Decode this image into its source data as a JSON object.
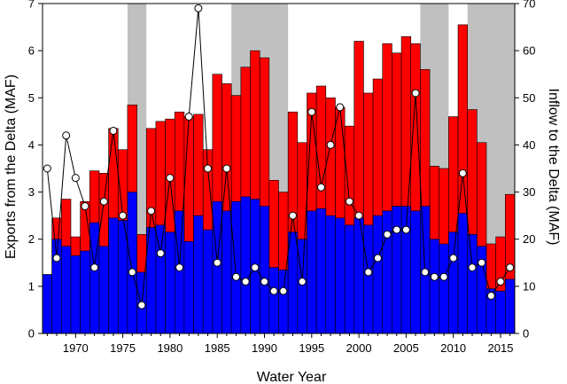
{
  "chart_data": {
    "type": "bar",
    "xlabel": "Water Year",
    "ylabel_left": "Exports from the Delta (MAF)",
    "ylabel_right": "Inflow to the Delta (MAF)",
    "xlim": [
      1966.5,
      2016.5
    ],
    "ylim_left": [
      0,
      7
    ],
    "ylim_right": [
      0,
      70
    ],
    "x_ticks": [
      1970,
      1975,
      1980,
      1985,
      1990,
      1995,
      2000,
      2005,
      2010,
      2015
    ],
    "y_ticks_left": [
      0,
      1,
      2,
      3,
      4,
      5,
      6,
      7
    ],
    "y_ticks_right": [
      0,
      10,
      20,
      30,
      40,
      50,
      60,
      70
    ],
    "grid": false,
    "drought_periods": [
      [
        1976,
        1977
      ],
      [
        1987,
        1992
      ],
      [
        2007,
        2009
      ],
      [
        2012,
        2016
      ]
    ],
    "years": [
      1967,
      1968,
      1969,
      1970,
      1971,
      1972,
      1973,
      1974,
      1975,
      1976,
      1977,
      1978,
      1979,
      1980,
      1981,
      1982,
      1983,
      1984,
      1985,
      1986,
      1987,
      1988,
      1989,
      1990,
      1991,
      1992,
      1993,
      1994,
      1995,
      1996,
      1997,
      1998,
      1999,
      2000,
      2001,
      2002,
      2003,
      2004,
      2005,
      2006,
      2007,
      2008,
      2009,
      2010,
      2011,
      2012,
      2013,
      2014,
      2015,
      2016
    ],
    "series": [
      {
        "role": "export_component_blue",
        "color": "#0000ff",
        "axis": "left",
        "values": [
          1.25,
          2.0,
          1.85,
          1.65,
          1.75,
          2.35,
          1.85,
          2.45,
          2.4,
          3.0,
          1.3,
          2.25,
          2.3,
          2.15,
          2.6,
          1.95,
          2.5,
          2.2,
          2.8,
          2.6,
          2.8,
          2.9,
          2.85,
          2.7,
          1.4,
          1.35,
          2.15,
          2.0,
          2.6,
          2.65,
          2.5,
          2.45,
          2.3,
          2.45,
          2.3,
          2.5,
          2.6,
          2.7,
          2.7,
          2.6,
          2.7,
          2.0,
          1.9,
          2.15,
          2.55,
          2.1,
          1.85,
          0.95,
          0.9,
          1.15
        ]
      },
      {
        "role": "total_exports_red_top",
        "color": "#ff0000",
        "axis": "left",
        "values": [
          1.25,
          2.45,
          2.85,
          2.05,
          2.8,
          3.45,
          3.4,
          4.35,
          3.9,
          4.85,
          2.1,
          4.35,
          4.5,
          4.55,
          4.7,
          4.6,
          4.65,
          3.9,
          5.5,
          5.3,
          5.05,
          5.65,
          6.0,
          5.85,
          3.25,
          3.0,
          4.7,
          4.05,
          5.1,
          5.25,
          5.0,
          4.8,
          4.4,
          6.2,
          5.1,
          5.4,
          6.15,
          5.95,
          6.3,
          6.15,
          5.6,
          3.55,
          3.5,
          4.6,
          6.55,
          4.75,
          4.05,
          1.9,
          2.05,
          2.95
        ]
      },
      {
        "name": "",
        "role": "inflow",
        "color": "#ffffff",
        "axis": "right",
        "values": [
          35,
          16,
          42,
          33,
          27,
          14,
          28,
          43,
          25,
          13,
          6,
          26,
          17,
          33,
          14,
          46,
          69,
          35,
          15,
          35,
          12,
          11,
          14,
          11,
          9,
          9,
          25,
          11,
          47,
          31,
          40,
          48,
          28,
          25,
          13,
          16,
          21,
          22,
          22,
          51,
          13,
          12,
          12,
          16,
          34,
          14,
          15,
          8,
          11,
          14
        ]
      }
    ]
  }
}
